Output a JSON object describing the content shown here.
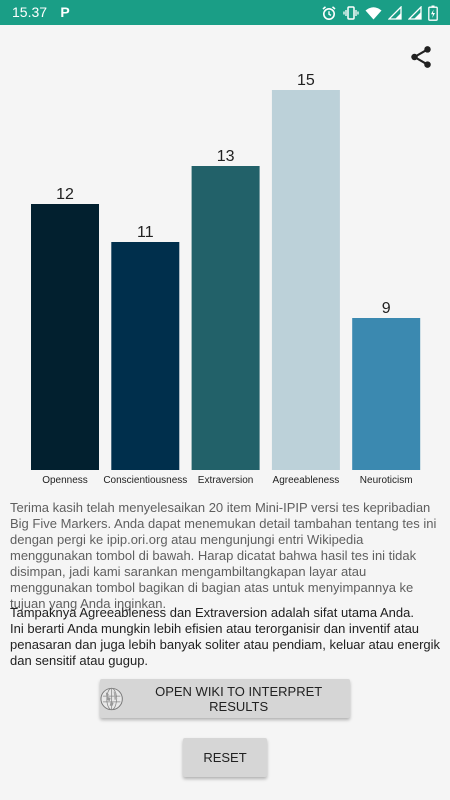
{
  "status_bar": {
    "time": "15.37",
    "app_icon_letter": "P",
    "background": "#1a9e86"
  },
  "toolbar": {
    "share_icon": "share-icon"
  },
  "chart_data": {
    "type": "bar",
    "categories": [
      "Openness",
      "Conscientiousness",
      "Extraversion",
      "Agreeableness",
      "Neuroticism"
    ],
    "values": [
      12,
      11,
      13,
      15,
      9
    ],
    "colors": [
      "#02202f",
      "#002f4c",
      "#226169",
      "#bcd1d9",
      "#3b89b0"
    ],
    "ylim": [
      5,
      15
    ],
    "title": "",
    "xlabel": "",
    "ylabel": ""
  },
  "description": "Terima kasih telah menyelesaikan 20 item Mini-IPIP versi tes kepribadian Big Five Markers. Anda dapat menemukan detail tambahan tentang tes ini dengan pergi ke ipip.ori.org atau mengunjungi entri Wikipedia menggunakan tombol di bawah. Harap dicatat bahwa hasil tes ini tidak disimpan, jadi kami sarankan mengambiltangkapan layar atau menggunakan tombol bagikan di bagian atas untuk menyimpannya ke tujuan yang Anda inginkan.",
  "summary": {
    "line1": "Tampaknya Agreeableness dan Extraversion adalah sifat utama Anda.",
    "line2": "Ini berarti Anda mungkin lebih efisien atau terorganisir dan inventif atau penasaran dan juga lebih banyak soliter atau pendiam, keluar atau energik dan sensitif atau gugup."
  },
  "buttons": {
    "wiki_label": "OPEN WIKI TO INTERPRET RESULTS",
    "wiki_icon": "wikipedia-globe-icon",
    "reset_label": "RESET"
  }
}
